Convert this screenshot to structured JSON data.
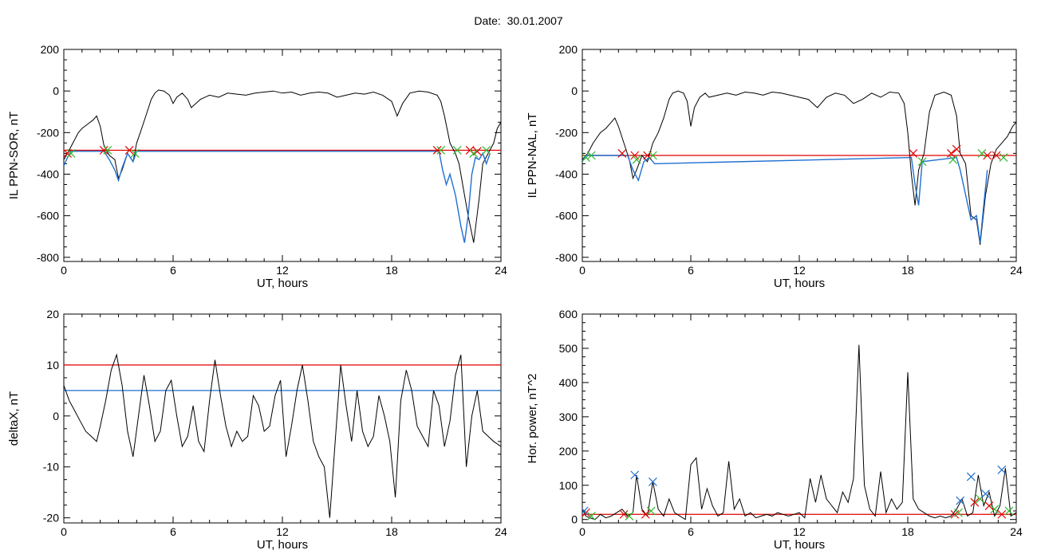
{
  "figure": {
    "title": "Date:  30.01.2007"
  },
  "chart_data": [
    {
      "type": "line",
      "xlabel": "UT, hours",
      "ylabel": "IL PPN-SOR, nT",
      "xlim": [
        0,
        24
      ],
      "ylim": [
        -820,
        200
      ],
      "xticks": [
        0,
        6,
        12,
        18,
        24
      ],
      "yticks": [
        -800,
        -600,
        -400,
        -200,
        0,
        200
      ],
      "threshold": {
        "value": -285,
        "color": "#e00000"
      },
      "series": [
        {
          "color": "#000000",
          "x": [
            0,
            0.2,
            0.5,
            0.8,
            1.0,
            1.3,
            1.6,
            1.8,
            2.0,
            2.2,
            2.5,
            2.8,
            3.0,
            3.2,
            3.5,
            3.8,
            4.0,
            4.2,
            4.5,
            4.8,
            5.0,
            5.2,
            5.5,
            5.8,
            6.0,
            6.2,
            6.5,
            6.8,
            7.0,
            7.5,
            8.0,
            8.5,
            9.0,
            9.5,
            10.0,
            10.5,
            11.0,
            11.5,
            12.0,
            12.5,
            13.0,
            13.5,
            14.0,
            14.5,
            15.0,
            15.5,
            16.0,
            16.5,
            17.0,
            17.5,
            18.0,
            18.3,
            18.6,
            19.0,
            19.5,
            20.0,
            20.5,
            20.7,
            20.9,
            21.2,
            21.5,
            21.7,
            21.9,
            22.2,
            22.5,
            22.8,
            23.0,
            23.3,
            23.6,
            23.8,
            24.0
          ],
          "y": [
            -330,
            -300,
            -250,
            -200,
            -180,
            -160,
            -140,
            -120,
            -170,
            -260,
            -310,
            -330,
            -420,
            -380,
            -300,
            -340,
            -250,
            -200,
            -120,
            -40,
            -10,
            5,
            0,
            -20,
            -60,
            -30,
            -10,
            -40,
            -80,
            -40,
            -20,
            -30,
            -10,
            -15,
            -20,
            -10,
            -5,
            0,
            -10,
            -5,
            -20,
            -10,
            -5,
            -10,
            -30,
            -20,
            -10,
            -15,
            -5,
            -20,
            -50,
            -120,
            -60,
            -10,
            0,
            -5,
            -20,
            -50,
            -120,
            -250,
            -300,
            -350,
            -450,
            -600,
            -730,
            -520,
            -350,
            -300,
            -250,
            -180,
            -150
          ]
        },
        {
          "color": "#1f6fd1",
          "x": [
            0,
            0.2,
            0.4,
            2.2,
            2.5,
            2.8,
            3.0,
            3.2,
            3.5,
            3.8,
            4.0,
            20.6,
            20.8,
            21.0,
            21.2,
            21.5,
            21.8,
            22.0,
            22.2,
            22.4,
            22.6,
            22.8,
            23.0,
            23.2,
            23.4
          ],
          "y": [
            -360,
            -320,
            -290,
            -290,
            -330,
            -380,
            -430,
            -370,
            -300,
            -340,
            -290,
            -290,
            -380,
            -450,
            -400,
            -500,
            -650,
            -730,
            -600,
            -400,
            -320,
            -330,
            -300,
            -350,
            -300
          ]
        }
      ],
      "markers": [
        {
          "symbol": "x",
          "color": "#e00000",
          "x": [
            0.2,
            2.2,
            3.6,
            20.5,
            22.3,
            22.7
          ],
          "y": [
            -300,
            -285,
            -285,
            -285,
            -285,
            -290
          ]
        },
        {
          "symbol": "x",
          "color": "#2fb82f",
          "x": [
            0.4,
            2.4,
            3.9,
            20.7,
            21.6,
            22.5,
            23.2
          ],
          "y": [
            -300,
            -285,
            -300,
            -285,
            -285,
            -300,
            -285
          ]
        }
      ]
    },
    {
      "type": "line",
      "xlabel": "UT, hours",
      "ylabel": "IL PPN-NAL, nT",
      "xlim": [
        0,
        24
      ],
      "ylim": [
        -820,
        200
      ],
      "xticks": [
        0,
        6,
        12,
        18,
        24
      ],
      "yticks": [
        -800,
        -600,
        -400,
        -200,
        0,
        200
      ],
      "threshold": {
        "value": -310,
        "color": "#e00000"
      },
      "series": [
        {
          "color": "#000000",
          "x": [
            0,
            0.3,
            0.6,
            1.0,
            1.3,
            1.6,
            1.8,
            2.0,
            2.3,
            2.6,
            2.8,
            3.0,
            3.3,
            3.6,
            3.9,
            4.2,
            4.5,
            4.8,
            5.0,
            5.3,
            5.6,
            5.8,
            6.0,
            6.2,
            6.5,
            6.8,
            7.0,
            7.5,
            8.0,
            8.5,
            9.0,
            9.5,
            10.0,
            10.5,
            11.0,
            11.5,
            12.0,
            12.5,
            13.0,
            13.5,
            14.0,
            14.5,
            15.0,
            15.5,
            16.0,
            16.5,
            17.0,
            17.5,
            17.8,
            18.0,
            18.2,
            18.4,
            18.6,
            18.9,
            19.2,
            19.5,
            20.0,
            20.4,
            20.7,
            20.9,
            21.2,
            21.5,
            21.8,
            22.0,
            22.3,
            22.6,
            22.9,
            23.2,
            23.5,
            23.8,
            24.0
          ],
          "y": [
            -330,
            -300,
            -250,
            -200,
            -180,
            -150,
            -130,
            -170,
            -250,
            -330,
            -420,
            -380,
            -310,
            -340,
            -250,
            -200,
            -130,
            -40,
            -10,
            0,
            -10,
            -50,
            -170,
            -80,
            -30,
            -10,
            -30,
            -20,
            -10,
            -20,
            -5,
            -10,
            -20,
            -5,
            -10,
            -20,
            -30,
            -40,
            -80,
            -30,
            -10,
            -20,
            -60,
            -40,
            -10,
            -30,
            -5,
            -10,
            -60,
            -200,
            -400,
            -550,
            -380,
            -300,
            -100,
            -20,
            -5,
            -20,
            -120,
            -300,
            -350,
            -600,
            -620,
            -740,
            -500,
            -350,
            -280,
            -250,
            -220,
            -170,
            -150
          ]
        },
        {
          "color": "#1f6fd1",
          "x": [
            0,
            0.2,
            2.5,
            2.8,
            3.1,
            3.4,
            3.7,
            4.0,
            18.2,
            18.4,
            18.6,
            18.8,
            20.7,
            20.9,
            21.2,
            21.5,
            21.8,
            22.0,
            22.2,
            22.4
          ],
          "y": [
            -340,
            -310,
            -310,
            -380,
            -430,
            -340,
            -320,
            -350,
            -320,
            -450,
            -550,
            -340,
            -320,
            -380,
            -500,
            -620,
            -600,
            -730,
            -550,
            -380
          ]
        }
      ],
      "markers": [
        {
          "symbol": "x",
          "color": "#e00000",
          "x": [
            2.2,
            2.9,
            3.6,
            18.3,
            20.4,
            20.7,
            22.4,
            22.9
          ],
          "y": [
            -300,
            -310,
            -310,
            -300,
            -300,
            -280,
            -310,
            -310
          ]
        },
        {
          "symbol": "x",
          "color": "#2fb82f",
          "x": [
            0.2,
            0.5,
            3.0,
            3.9,
            18.8,
            20.5,
            22.1,
            23.3
          ],
          "y": [
            -320,
            -310,
            -330,
            -310,
            -340,
            -330,
            -300,
            -320
          ]
        }
      ]
    },
    {
      "type": "line",
      "xlabel": "UT, hours",
      "ylabel": "deltaX, nT",
      "xlim": [
        0,
        24
      ],
      "ylim": [
        -21,
        20
      ],
      "xticks": [
        0,
        6,
        12,
        18,
        24
      ],
      "yticks": [
        -20,
        -10,
        0,
        10,
        20
      ],
      "thresholds": [
        {
          "value": 10,
          "color": "#e00000"
        },
        {
          "value": 5,
          "color": "#1f6fd1"
        }
      ],
      "series": [
        {
          "color": "#000000",
          "x": [
            0,
            0.3,
            0.6,
            0.9,
            1.2,
            1.5,
            1.8,
            2.0,
            2.3,
            2.6,
            2.9,
            3.2,
            3.5,
            3.8,
            4.1,
            4.4,
            4.7,
            5.0,
            5.3,
            5.6,
            5.9,
            6.2,
            6.5,
            6.8,
            7.1,
            7.4,
            7.7,
            8.0,
            8.3,
            8.6,
            8.9,
            9.2,
            9.5,
            9.8,
            10.1,
            10.4,
            10.7,
            11.0,
            11.3,
            11.6,
            11.9,
            12.2,
            12.5,
            12.8,
            13.1,
            13.4,
            13.7,
            14.0,
            14.3,
            14.6,
            14.9,
            15.2,
            15.5,
            15.8,
            16.1,
            16.4,
            16.7,
            17.0,
            17.3,
            17.6,
            17.9,
            18.2,
            18.5,
            18.8,
            19.1,
            19.4,
            19.7,
            20.0,
            20.3,
            20.6,
            20.9,
            21.2,
            21.5,
            21.8,
            22.1,
            22.4,
            22.7,
            23.0,
            23.3,
            23.6,
            24.0
          ],
          "y": [
            6,
            3,
            1,
            -1,
            -3,
            -4,
            -5,
            -2,
            3,
            9,
            12,
            6,
            -3,
            -8,
            0,
            8,
            2,
            -5,
            -3,
            5,
            7,
            0,
            -6,
            -4,
            2,
            -5,
            -7,
            3,
            11,
            4,
            -2,
            -6,
            -3,
            -5,
            -4,
            4,
            2,
            -3,
            -2,
            4,
            7,
            -8,
            -2,
            5,
            10,
            3,
            -5,
            -8,
            -10,
            -20,
            -5,
            10,
            2,
            -5,
            5,
            -3,
            -6,
            -4,
            4,
            0,
            -5,
            -16,
            3,
            9,
            5,
            -2,
            -4,
            -6,
            5,
            2,
            -6,
            -1,
            8,
            12,
            -10,
            0,
            5,
            -3,
            -4,
            -5,
            -6
          ]
        }
      ],
      "markers": []
    },
    {
      "type": "line",
      "xlabel": "UT, hours",
      "ylabel": "Hor. power, nT^2",
      "xlim": [
        0,
        24
      ],
      "ylim": [
        -10,
        600
      ],
      "xticks": [
        0,
        6,
        12,
        18,
        24
      ],
      "yticks": [
        0,
        100,
        200,
        300,
        400,
        500,
        600
      ],
      "threshold": {
        "value": 15,
        "color": "#e00000"
      },
      "series": [
        {
          "color": "#000000",
          "x": [
            0,
            0.2,
            0.4,
            0.7,
            1.0,
            1.3,
            1.6,
            1.9,
            2.2,
            2.5,
            2.8,
            3.0,
            3.3,
            3.6,
            3.9,
            4.2,
            4.5,
            4.8,
            5.1,
            5.4,
            5.7,
            6.0,
            6.3,
            6.6,
            6.9,
            7.2,
            7.5,
            7.8,
            8.1,
            8.4,
            8.7,
            9.0,
            9.3,
            9.6,
            9.9,
            10.2,
            10.5,
            10.8,
            11.1,
            11.4,
            11.7,
            12.0,
            12.3,
            12.6,
            12.9,
            13.2,
            13.5,
            13.8,
            14.1,
            14.4,
            14.7,
            15.0,
            15.3,
            15.6,
            15.9,
            16.2,
            16.5,
            16.8,
            17.1,
            17.4,
            17.7,
            18.0,
            18.3,
            18.6,
            18.9,
            19.2,
            19.5,
            19.8,
            20.1,
            20.4,
            20.7,
            21.0,
            21.3,
            21.6,
            21.9,
            22.2,
            22.5,
            22.8,
            23.1,
            23.4,
            23.7,
            24.0
          ],
          "y": [
            30,
            10,
            5,
            0,
            15,
            5,
            10,
            20,
            30,
            10,
            20,
            130,
            30,
            10,
            110,
            30,
            10,
            60,
            20,
            10,
            0,
            160,
            180,
            30,
            90,
            40,
            10,
            20,
            170,
            30,
            60,
            10,
            20,
            5,
            10,
            15,
            10,
            20,
            15,
            10,
            15,
            20,
            5,
            120,
            50,
            130,
            60,
            40,
            20,
            80,
            50,
            120,
            510,
            100,
            30,
            10,
            140,
            20,
            60,
            30,
            50,
            430,
            60,
            30,
            20,
            10,
            5,
            10,
            5,
            10,
            30,
            60,
            10,
            20,
            130,
            40,
            80,
            10,
            40,
            150,
            10,
            20
          ]
        }
      ],
      "markers": [
        {
          "symbol": "x",
          "color": "#e00000",
          "x": [
            0.2,
            2.3,
            3.5,
            20.6,
            21.7,
            22.5,
            23.2
          ],
          "y": [
            20,
            15,
            15,
            15,
            50,
            40,
            15
          ]
        },
        {
          "symbol": "x",
          "color": "#2fb82f",
          "x": [
            0.5,
            2.6,
            3.8,
            20.8,
            22.0,
            22.8,
            23.6
          ],
          "y": [
            10,
            10,
            25,
            20,
            60,
            30,
            25
          ]
        },
        {
          "symbol": "x",
          "color": "#1f6fd1",
          "x": [
            0.1,
            2.9,
            3.9,
            20.9,
            21.5,
            22.3,
            23.2
          ],
          "y": [
            25,
            130,
            110,
            55,
            125,
            75,
            145
          ]
        }
      ]
    }
  ]
}
